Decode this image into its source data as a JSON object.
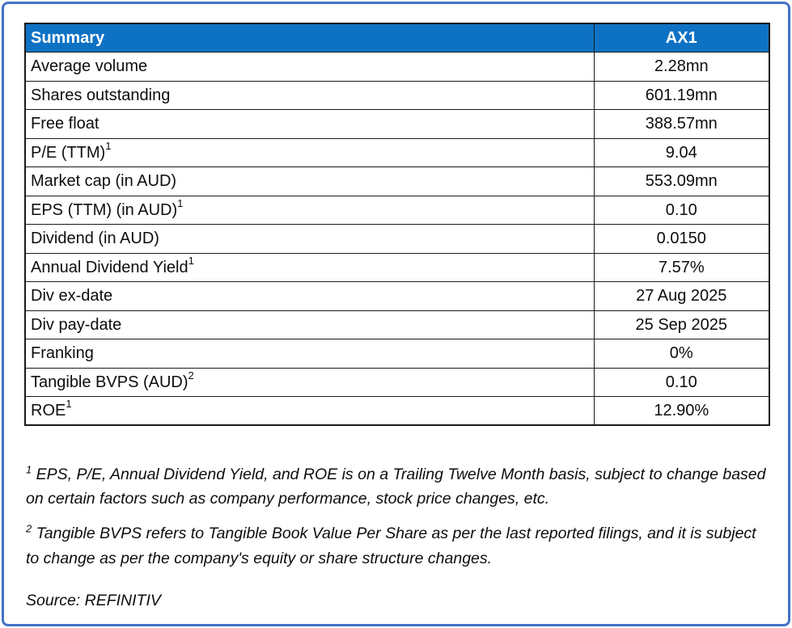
{
  "table": {
    "header": {
      "label": "Summary",
      "value": "AX1"
    },
    "rows": [
      {
        "label": "Average volume",
        "sup": "",
        "value": "2.28mn"
      },
      {
        "label": "Shares outstanding",
        "sup": "",
        "value": "601.19mn"
      },
      {
        "label": "Free float",
        "sup": "",
        "value": "388.57mn"
      },
      {
        "label": "P/E (TTM)",
        "sup": "1",
        "value": "9.04"
      },
      {
        "label": "Market cap (in AUD)",
        "sup": "",
        "value": "553.09mn"
      },
      {
        "label": "EPS (TTM) (in AUD)",
        "sup": "1",
        "value": "0.10"
      },
      {
        "label": "Dividend (in AUD)",
        "sup": "",
        "value": "0.0150"
      },
      {
        "label": "Annual Dividend Yield",
        "sup": "1",
        "value": "7.57%"
      },
      {
        "label": "Div ex-date",
        "sup": "",
        "value": "27 Aug 2025"
      },
      {
        "label": "Div pay-date",
        "sup": "",
        "value": "25 Sep 2025"
      },
      {
        "label": "Franking",
        "sup": "",
        "value": "0%"
      },
      {
        "label": "Tangible BVPS (AUD)",
        "sup": "2",
        "value": "0.10"
      },
      {
        "label": "ROE",
        "sup": "1",
        "value": "12.90%"
      }
    ]
  },
  "footnotes": [
    {
      "sup": "1",
      "text": " EPS, P/E, Annual Dividend Yield, and ROE is on a Trailing Twelve Month basis, subject to change based on certain factors such as company performance, stock price changes, etc."
    },
    {
      "sup": "2",
      "text": " Tangible BVPS refers to Tangible Book Value Per Share as per the last reported filings, and it is subject to change as per the company's equity or share structure changes."
    }
  ],
  "source": "Source: REFINITIV",
  "colors": {
    "header_bg": "#0E72C4",
    "frame_border": "#4472C4",
    "grid_border": "#1a1a1a"
  }
}
